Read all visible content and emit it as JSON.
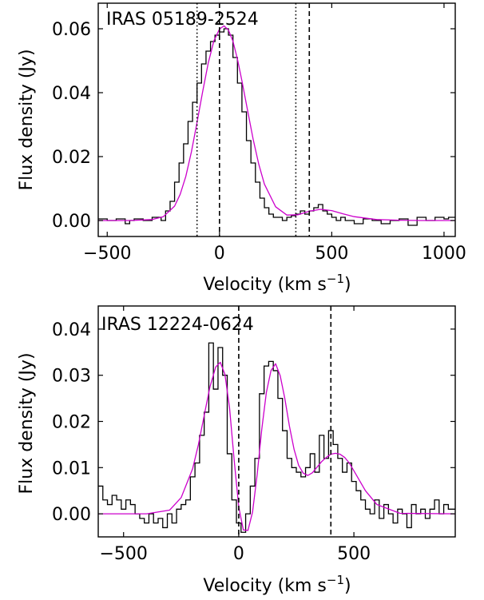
{
  "chart_data": [
    {
      "type": "line",
      "title": "IRAS 05189-2524",
      "xlabel": "Velocity (km s",
      "xlabel_sup": "−1",
      "xlabel_tail": ")",
      "ylabel": "Flux density (Jy)",
      "xlim": [
        -540,
        1050
      ],
      "ylim": [
        -0.005,
        0.068
      ],
      "xticks": [
        -500,
        0,
        500,
        1000
      ],
      "xtick_labels": [
        "−500",
        "0",
        "500",
        "1000"
      ],
      "yticks": [
        0.0,
        0.02,
        0.04,
        0.06
      ],
      "ytick_labels": [
        "0.00",
        "0.02",
        "0.04",
        "0.06"
      ],
      "grid": false,
      "series": [
        {
          "style": "histogram",
          "color": "#000000",
          "x": [
            -540,
            -500,
            -460,
            -420,
            -400,
            -380,
            -340,
            -300,
            -260,
            -240,
            -220,
            -200,
            -180,
            -160,
            -140,
            -120,
            -100,
            -80,
            -60,
            -40,
            -20,
            0,
            20,
            40,
            60,
            80,
            100,
            120,
            140,
            160,
            180,
            200,
            220,
            240,
            260,
            280,
            300,
            320,
            340,
            360,
            380,
            400,
            420,
            440,
            460,
            480,
            500,
            520,
            540,
            560,
            600,
            640,
            680,
            720,
            760,
            800,
            840,
            880,
            920,
            960,
            1000,
            1020,
            1050
          ],
          "y": [
            0.0005,
            0.0,
            0.0005,
            -0.001,
            0.0,
            0.0005,
            0.0,
            0.001,
            0.0,
            0.003,
            0.006,
            0.012,
            0.018,
            0.024,
            0.031,
            0.037,
            0.043,
            0.049,
            0.053,
            0.056,
            0.058,
            0.059,
            0.06,
            0.058,
            0.051,
            0.043,
            0.034,
            0.025,
            0.018,
            0.012,
            0.007,
            0.004,
            0.002,
            0.001,
            0.001,
            0.0,
            0.001,
            0.0015,
            0.002,
            0.003,
            0.002,
            0.003,
            0.004,
            0.005,
            0.003,
            0.002,
            0.001,
            0.0,
            0.001,
            0.0,
            -0.001,
            0.0005,
            0.0,
            -0.001,
            0.0,
            0.0005,
            -0.0015,
            0.001,
            0.0,
            0.001,
            0.0005,
            0.001,
            0.001
          ]
        },
        {
          "style": "fit",
          "color": "#cc00cc",
          "x": [
            -540,
            -400,
            -300,
            -250,
            -200,
            -175,
            -150,
            -125,
            -100,
            -75,
            -50,
            -25,
            0,
            20,
            40,
            60,
            80,
            100,
            125,
            150,
            175,
            200,
            250,
            300,
            350,
            400,
            450,
            500,
            550,
            600,
            700,
            800,
            900,
            1050
          ],
          "y": [
            0.0,
            0.0,
            0.0003,
            0.0012,
            0.0045,
            0.0082,
            0.0138,
            0.0215,
            0.0307,
            0.0403,
            0.0493,
            0.0562,
            0.0599,
            0.0609,
            0.0596,
            0.0561,
            0.0505,
            0.0437,
            0.0345,
            0.0254,
            0.0176,
            0.0114,
            0.0043,
            0.0017,
            0.0018,
            0.0029,
            0.0035,
            0.0031,
            0.0021,
            0.0012,
            0.0003,
            0.0001,
            0.0,
            0.0
          ]
        }
      ],
      "vlines": [
        {
          "x": -100,
          "style": "dotted"
        },
        {
          "x": 0,
          "style": "dashed"
        },
        {
          "x": 340,
          "style": "dotted"
        },
        {
          "x": 400,
          "style": "dashed"
        }
      ]
    },
    {
      "type": "line",
      "title": "IRAS 12224-0624",
      "xlabel": "Velocity (km s",
      "xlabel_sup": "−1",
      "xlabel_tail": ")",
      "ylabel": "Flux density (Jy)",
      "xlim": [
        -610,
        940
      ],
      "ylim": [
        -0.005,
        0.045
      ],
      "xticks": [
        -500,
        0,
        500
      ],
      "xtick_labels": [
        "−500",
        "0",
        "500"
      ],
      "yticks": [
        0.0,
        0.01,
        0.02,
        0.03,
        0.04
      ],
      "ytick_labels": [
        "0.00",
        "0.01",
        "0.02",
        "0.03",
        "0.04"
      ],
      "grid": false,
      "series": [
        {
          "style": "histogram",
          "color": "#000000",
          "x": [
            -610,
            -590,
            -570,
            -550,
            -530,
            -510,
            -490,
            -470,
            -450,
            -430,
            -410,
            -390,
            -370,
            -350,
            -330,
            -310,
            -290,
            -270,
            -250,
            -230,
            -210,
            -190,
            -170,
            -150,
            -130,
            -110,
            -90,
            -70,
            -50,
            -30,
            -10,
            10,
            30,
            50,
            70,
            90,
            110,
            130,
            150,
            170,
            190,
            210,
            230,
            250,
            270,
            290,
            310,
            330,
            350,
            370,
            390,
            410,
            430,
            450,
            470,
            490,
            510,
            530,
            550,
            570,
            590,
            610,
            630,
            650,
            670,
            690,
            710,
            730,
            750,
            770,
            790,
            810,
            830,
            850,
            870,
            890,
            910,
            940
          ],
          "y": [
            0.006,
            0.003,
            0.002,
            0.004,
            0.003,
            0.001,
            0.003,
            0.002,
            0.0,
            -0.001,
            -0.002,
            0.0,
            -0.002,
            -0.001,
            -0.003,
            0.0,
            -0.002,
            0.001,
            0.002,
            0.003,
            0.008,
            0.011,
            0.017,
            0.022,
            0.037,
            0.027,
            0.036,
            0.03,
            0.013,
            0.003,
            -0.002,
            -0.004,
            0.0,
            0.006,
            0.012,
            0.026,
            0.032,
            0.033,
            0.031,
            0.025,
            0.018,
            0.012,
            0.01,
            0.009,
            0.008,
            0.01,
            0.013,
            0.009,
            0.017,
            0.012,
            0.018,
            0.015,
            0.012,
            0.009,
            0.011,
            0.007,
            0.005,
            0.003,
            0.001,
            0.0,
            0.003,
            -0.001,
            0.002,
            0.0,
            -0.002,
            0.001,
            0.0,
            -0.003,
            0.002,
            0.0,
            0.001,
            -0.001,
            0.001,
            0.003,
            0.0,
            0.002,
            0.001,
            0.002
          ]
        },
        {
          "style": "fit",
          "color": "#cc00cc",
          "x": [
            -610,
            -400,
            -300,
            -250,
            -200,
            -175,
            -150,
            -125,
            -100,
            -80,
            -60,
            -40,
            -20,
            0,
            20,
            40,
            60,
            80,
            100,
            120,
            140,
            160,
            180,
            200,
            220,
            240,
            260,
            280,
            300,
            320,
            340,
            360,
            380,
            400,
            420,
            440,
            460,
            480,
            500,
            550,
            600,
            700,
            940
          ],
          "y": [
            0.0,
            0.0,
            0.0008,
            0.0035,
            0.0098,
            0.015,
            0.0213,
            0.0275,
            0.0318,
            0.0328,
            0.0302,
            0.023,
            0.0117,
            0.0015,
            -0.0035,
            -0.0036,
            0.0004,
            0.0085,
            0.0183,
            0.0263,
            0.031,
            0.0325,
            0.0299,
            0.025,
            0.019,
            0.014,
            0.0105,
            0.0088,
            0.0083,
            0.0089,
            0.0101,
            0.0113,
            0.0122,
            0.0129,
            0.0131,
            0.0129,
            0.0122,
            0.011,
            0.0093,
            0.005,
            0.002,
            0.0001,
            0.0
          ]
        }
      ],
      "vlines": [
        {
          "x": 0,
          "style": "dashed"
        },
        {
          "x": 400,
          "style": "dashed"
        }
      ]
    }
  ]
}
